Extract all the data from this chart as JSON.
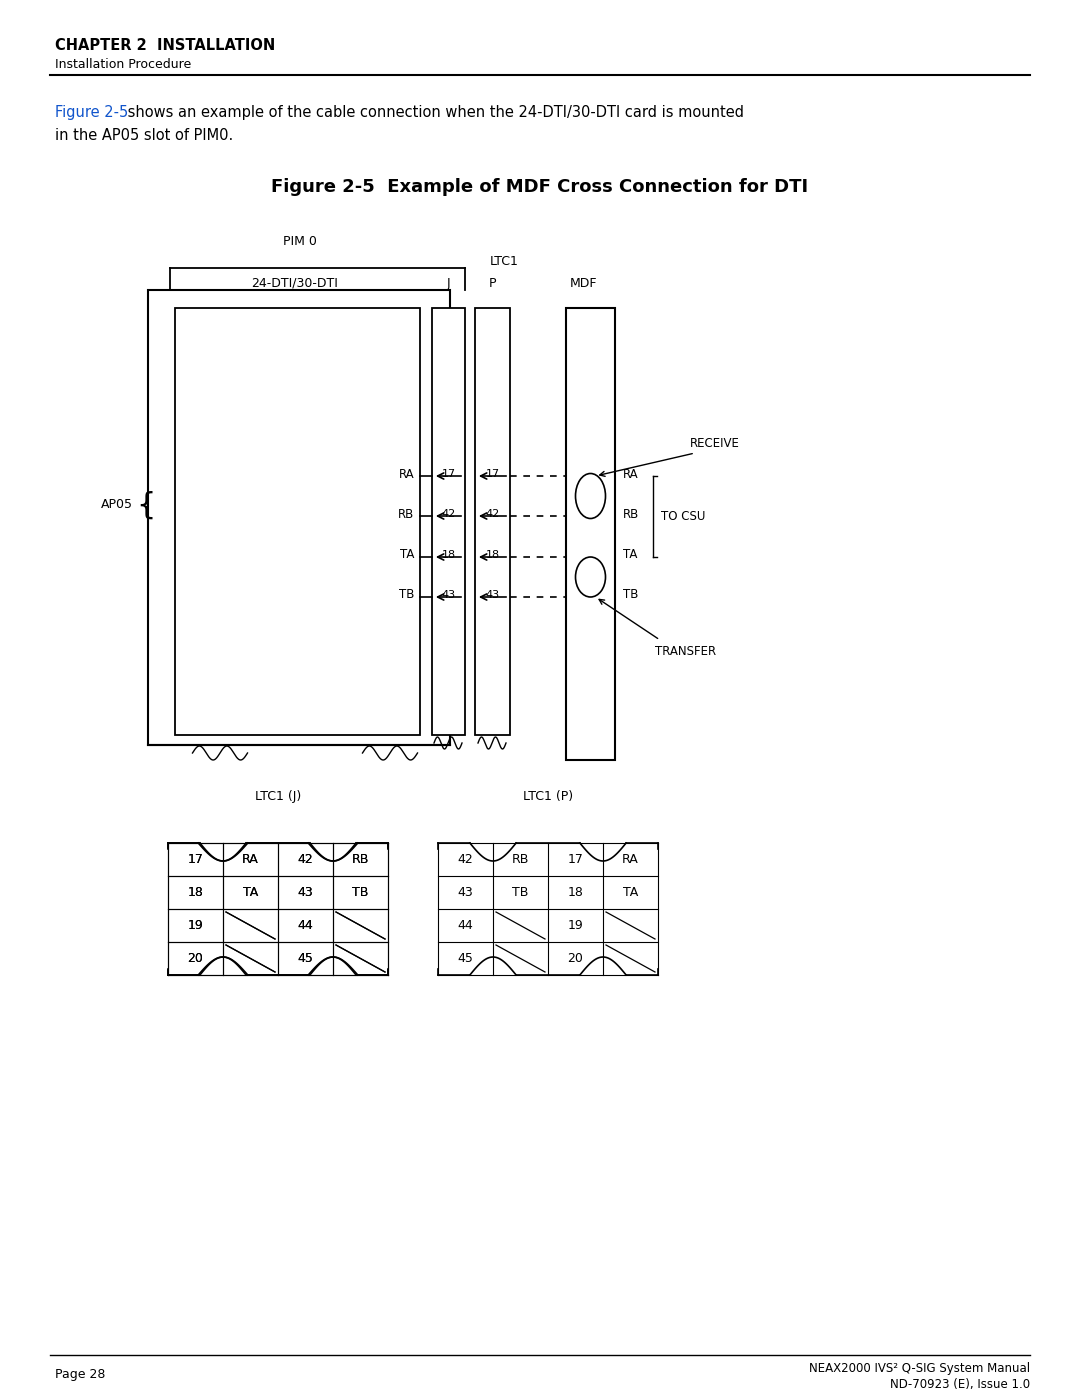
{
  "title": "Figure 2-5  Example of MDF Cross Connection for DTI",
  "chapter": "CHAPTER 2  INSTALLATION",
  "subtitle": "Installation Procedure",
  "intro_text_blue": "Figure 2-5",
  "intro_text_black1": " shows an example of the cable connection when the 24-DTI/30-DTI card is mounted",
  "intro_text_black2": "in the AP05 slot of PIM0.",
  "footer_left": "Page 28",
  "footer_right_line1": "NEAX2000 IVS² Q-SIG System Manual",
  "footer_right_line2": "ND-70923 (E), Issue 1.0",
  "diagram": {
    "pim0_label": "PIM 0",
    "ltc1_label": "LTC1",
    "dti_label": "24-DTI/30-DTI",
    "j_label": "J",
    "p_label": "P",
    "mdf_label": "MDF",
    "ap05_label": "AP05",
    "receive_label": "RECEIVE",
    "transfer_label": "TRANSFER",
    "to_csu_label": "TO CSU",
    "wire_labels": [
      "RA",
      "RB",
      "TA",
      "TB"
    ],
    "pin_numbers_j": [
      "17",
      "42",
      "18",
      "43"
    ],
    "pin_numbers_p": [
      "17",
      "42",
      "18",
      "43"
    ]
  },
  "table_j": {
    "label": "LTC1 (J)",
    "rows": [
      [
        "17",
        "RA",
        "42",
        "RB"
      ],
      [
        "18",
        "TA",
        "43",
        "TB"
      ],
      [
        "19",
        "",
        "44",
        ""
      ],
      [
        "20",
        "",
        "45",
        ""
      ]
    ]
  },
  "table_p": {
    "label": "LTC1 (P)",
    "rows": [
      [
        "42",
        "RB",
        "17",
        "RA"
      ],
      [
        "43",
        "TB",
        "18",
        "TA"
      ],
      [
        "44",
        "",
        "19",
        ""
      ],
      [
        "45",
        "",
        "20",
        ""
      ]
    ]
  }
}
